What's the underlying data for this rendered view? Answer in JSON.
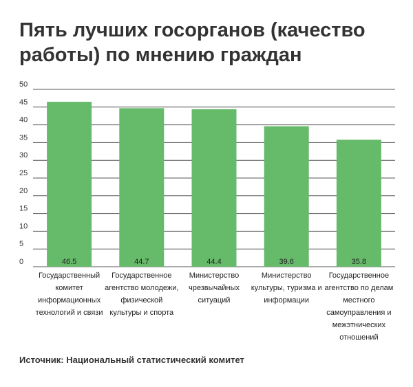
{
  "chart_data": {
    "type": "bar",
    "title": "Пять лучших госорганов (качество работы) по мнению граждан",
    "categories": [
      [
        "Государственный",
        "комитет",
        "информационных",
        "технологий и связи"
      ],
      [
        "Государственное",
        "агентство молодежи,",
        "физической",
        "культуры и спорта"
      ],
      [
        "Министерство",
        "чрезвычайных",
        "ситуаций"
      ],
      [
        "Министерство",
        "культуры, туризма и",
        "информации"
      ],
      [
        "Государственное",
        "агентство по делам",
        "местного",
        "самоуправления и",
        "межэтнических",
        "отношений"
      ]
    ],
    "values": [
      46.5,
      44.7,
      44.4,
      39.6,
      35.8
    ],
    "yticks": [
      0,
      5,
      10,
      15,
      20,
      25,
      30,
      35,
      40,
      45,
      50
    ],
    "ylim": [
      0,
      50
    ],
    "bar_color": "#66bb6a",
    "grid_color": "#555555",
    "grid": true
  },
  "source": "Источник: Национальный статистический комитет"
}
